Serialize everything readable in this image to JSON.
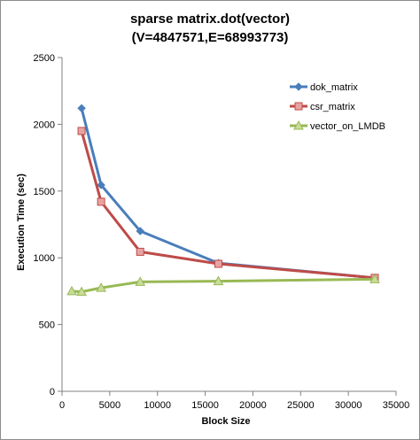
{
  "chart_data": {
    "type": "line",
    "title": "sparse matrix.dot(vector)",
    "subtitle": "(V=4847571,E=68993773)",
    "xlabel": "Block Size",
    "ylabel": "Execution Time (sec)",
    "xlim": [
      0,
      35000
    ],
    "ylim": [
      0,
      2500
    ],
    "xticks": [
      0,
      5000,
      10000,
      15000,
      20000,
      25000,
      30000,
      35000
    ],
    "yticks": [
      0,
      500,
      1000,
      1500,
      2000,
      2500
    ],
    "grid": false,
    "legend_position": "right",
    "series": [
      {
        "name": "dok_matrix",
        "color": "#4a7ebb",
        "marker": "diamond",
        "x": [
          2048,
          4096,
          8192,
          16384,
          32768
        ],
        "y": [
          2120,
          1545,
          1200,
          960,
          850
        ]
      },
      {
        "name": "csr_matrix",
        "color": "#be4b48",
        "marker": "square",
        "x": [
          2048,
          4096,
          8192,
          16384,
          32768
        ],
        "y": [
          1950,
          1420,
          1045,
          955,
          850
        ]
      },
      {
        "name": "vector_on_LMDB",
        "color": "#98b954",
        "marker": "triangle",
        "x": [
          1024,
          2048,
          4096,
          8192,
          16384,
          32768
        ],
        "y": [
          750,
          745,
          775,
          820,
          825,
          840
        ]
      }
    ]
  }
}
